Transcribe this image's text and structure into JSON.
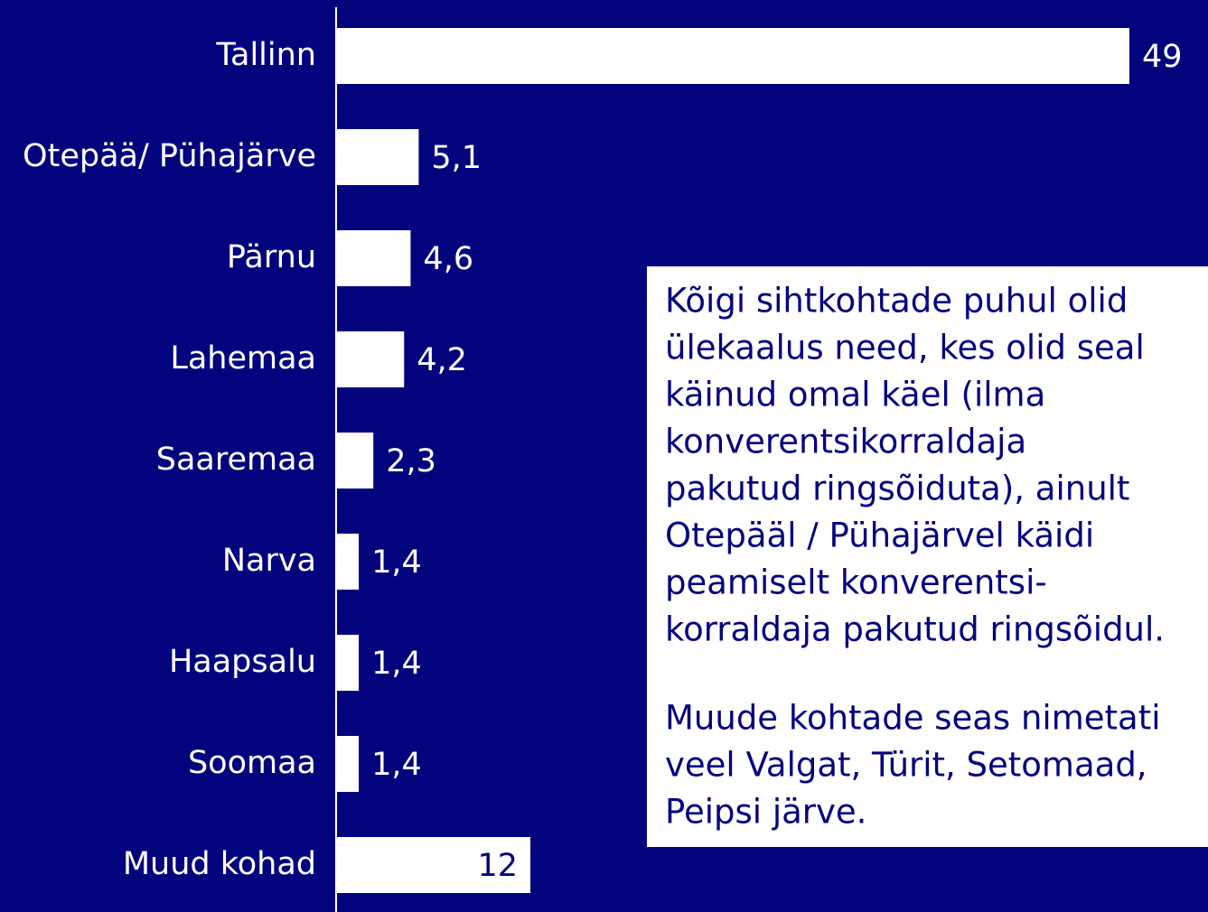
{
  "chart_data": {
    "type": "bar",
    "orientation": "horizontal",
    "categories": [
      "Tallinn",
      "Otepää/ Pühajärve",
      "Pärnu",
      "Lahemaa",
      "Saaremaa",
      "Narva",
      "Haapsalu",
      "Soomaa",
      "Muud kohad"
    ],
    "values": [
      49,
      5.1,
      4.6,
      4.2,
      2.3,
      1.4,
      1.4,
      1.4,
      12
    ],
    "value_labels": [
      "49",
      "5,1",
      "4,6",
      "4,2",
      "2,3",
      "1,4",
      "1,4",
      "1,4",
      "12"
    ],
    "color": "#ffffff",
    "background": "#03037e",
    "annotation": [
      [
        "Kõigi sihtkohtade puhul olid",
        "ülekaalus need, kes olid seal",
        "käinud omal käel (ilma",
        "konverentsikorraldaja",
        "pakutud ringsõiduta), ainult",
        "Otepääl / Pühajärvel käidi",
        "peamiselt konverentsi-",
        "korraldaja pakutud ringsõidul."
      ],
      [
        "Muude kohtade seas nimetati",
        "veel Valgat, Türit, Setomaad,",
        "Peipsi järve."
      ]
    ]
  }
}
